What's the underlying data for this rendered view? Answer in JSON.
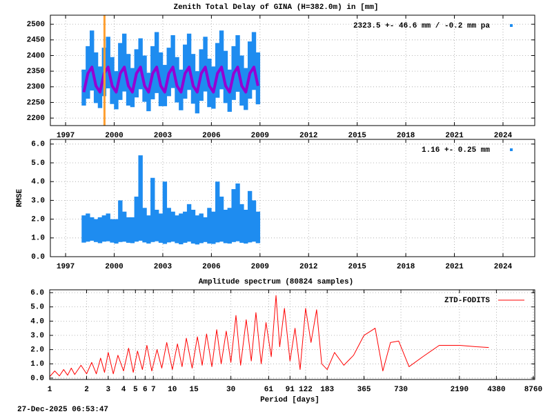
{
  "timestamp": "27-Dec-2025 06:53:47",
  "chart_data": [
    {
      "type": "range",
      "title": "Zenith Total Delay of GINA (H=382.0m) in [mm]",
      "xlim": [
        1996.06,
        2025.96
      ],
      "xticks": [
        1997,
        2000,
        2003,
        2006,
        2009,
        2012,
        2015,
        2018,
        2021,
        2024
      ],
      "ylim": [
        2176,
        2529
      ],
      "yticks": [
        2200,
        2250,
        2300,
        2350,
        2400,
        2450,
        2500
      ],
      "grid": true,
      "vlines": [
        {
          "x": 1999.4,
          "color": "#ff9f30"
        }
      ],
      "x": [
        1998.125,
        1998.375,
        1998.625,
        1998.875,
        1999.125,
        1999.375,
        1999.625,
        1999.875,
        2000.125,
        2000.375,
        2000.625,
        2000.875,
        2001.125,
        2001.375,
        2001.625,
        2001.875,
        2002.125,
        2002.375,
        2002.625,
        2002.875,
        2003.125,
        2003.375,
        2003.625,
        2003.875,
        2004.125,
        2004.375,
        2004.625,
        2004.875,
        2005.125,
        2005.375,
        2005.625,
        2005.875,
        2006.125,
        2006.375,
        2006.625,
        2006.875,
        2007.125,
        2007.375,
        2007.625,
        2007.875,
        2008.125,
        2008.375,
        2008.625,
        2008.875
      ],
      "series": [
        {
          "name": "2323.5 +-  46.6 mm / -0.2 mm pa",
          "color": "#1e8cf0",
          "low": [
            2240,
            2262,
            2288,
            2248,
            2232,
            2270,
            2295,
            2245,
            2228,
            2258,
            2285,
            2240,
            2235,
            2266,
            2292,
            2252,
            2222,
            2260,
            2280,
            2238,
            2238,
            2270,
            2296,
            2250,
            2225,
            2262,
            2290,
            2246,
            2215,
            2255,
            2285,
            2235,
            2230,
            2265,
            2292,
            2248,
            2220,
            2258,
            2284,
            2240,
            2226,
            2262,
            2290,
            2244
          ],
          "high": [
            2355,
            2430,
            2480,
            2410,
            2365,
            2425,
            2460,
            2395,
            2350,
            2440,
            2470,
            2405,
            2360,
            2420,
            2455,
            2400,
            2345,
            2430,
            2475,
            2410,
            2370,
            2425,
            2465,
            2395,
            2355,
            2435,
            2470,
            2405,
            2350,
            2420,
            2460,
            2390,
            2365,
            2440,
            2480,
            2415,
            2355,
            2430,
            2465,
            2400,
            2360,
            2445,
            2475,
            2410
          ]
        },
        {
          "color": "#9400d3",
          "values": [
            2283,
            2343,
            2363,
            2303,
            2283,
            2343,
            2363,
            2303,
            2283,
            2343,
            2363,
            2303,
            2283,
            2343,
            2363,
            2303,
            2283,
            2343,
            2363,
            2303,
            2283,
            2343,
            2363,
            2303,
            2283,
            2343,
            2363,
            2303,
            2283,
            2343,
            2363,
            2303,
            2283,
            2343,
            2363,
            2303,
            2283,
            2343,
            2363,
            2303,
            2283,
            2343,
            2363,
            2303
          ]
        }
      ]
    },
    {
      "type": "range",
      "ylabel": "RMSE",
      "xlim": [
        1996.06,
        2025.96
      ],
      "xticks": [
        1997,
        2000,
        2003,
        2006,
        2009,
        2012,
        2015,
        2018,
        2021,
        2024
      ],
      "ylim": [
        0,
        6.25
      ],
      "yticks": [
        {
          "value": 0,
          "label": "0.0"
        },
        {
          "value": 1,
          "label": "1.0"
        },
        {
          "value": 2,
          "label": "2.0"
        },
        {
          "value": 3,
          "label": "3.0"
        },
        {
          "value": 4,
          "label": "4.0"
        },
        {
          "value": 5,
          "label": "5.0"
        },
        {
          "value": 6,
          "label": "6.0"
        }
      ],
      "grid": true,
      "x": [
        1998.125,
        1998.375,
        1998.625,
        1998.875,
        1999.125,
        1999.375,
        1999.625,
        1999.875,
        2000.125,
        2000.375,
        2000.625,
        2000.875,
        2001.125,
        2001.375,
        2001.625,
        2001.875,
        2002.125,
        2002.375,
        2002.625,
        2002.875,
        2003.125,
        2003.375,
        2003.625,
        2003.875,
        2004.125,
        2004.375,
        2004.625,
        2004.875,
        2005.125,
        2005.375,
        2005.625,
        2005.875,
        2006.125,
        2006.375,
        2006.625,
        2006.875,
        2007.125,
        2007.375,
        2007.625,
        2007.875,
        2008.125,
        2008.375,
        2008.625,
        2008.875
      ],
      "series": [
        {
          "name": "1.16 +-  0.25 mm",
          "color": "#1e8cf0",
          "low": [
            0.75,
            0.8,
            0.85,
            0.78,
            0.72,
            0.8,
            0.82,
            0.75,
            0.7,
            0.78,
            0.8,
            0.74,
            0.72,
            0.8,
            0.85,
            0.76,
            0.7,
            0.78,
            0.82,
            0.74,
            0.68,
            0.76,
            0.8,
            0.72,
            0.66,
            0.74,
            0.8,
            0.7,
            0.65,
            0.72,
            0.78,
            0.7,
            0.68,
            0.76,
            0.8,
            0.72,
            0.7,
            0.78,
            0.82,
            0.74,
            0.7,
            0.76,
            0.8,
            0.72
          ],
          "high": [
            2.2,
            2.3,
            2.1,
            2.0,
            2.1,
            2.2,
            2.3,
            2.0,
            2.0,
            3.0,
            2.4,
            2.1,
            2.1,
            3.2,
            5.4,
            2.6,
            2.2,
            4.2,
            2.5,
            2.3,
            4.0,
            2.6,
            2.4,
            2.2,
            2.3,
            2.4,
            2.8,
            2.5,
            2.2,
            2.3,
            2.1,
            2.6,
            2.4,
            4.0,
            3.2,
            2.5,
            2.6,
            3.6,
            3.9,
            2.8,
            2.5,
            3.5,
            3.0,
            2.4
          ]
        }
      ]
    },
    {
      "type": "line",
      "title": "Amplitude spectrum (80824 samples)",
      "xlabel": "Period [days]",
      "xscale": "log",
      "xlim": [
        1,
        9000
      ],
      "xticks": [
        1,
        2,
        3,
        4,
        5,
        6,
        7,
        10,
        15,
        30,
        61,
        91,
        122,
        183,
        365,
        730,
        2190,
        4380,
        8760
      ],
      "ylim": [
        -0.1,
        6.2
      ],
      "yticks": [
        {
          "value": 0,
          "label": "0.0"
        },
        {
          "value": 1,
          "label": "1.0"
        },
        {
          "value": 2,
          "label": "2.0"
        },
        {
          "value": 3,
          "label": "3.0"
        },
        {
          "value": 4,
          "label": "4.0"
        },
        {
          "value": 5,
          "label": "5.0"
        },
        {
          "value": 6,
          "label": "6.0"
        }
      ],
      "grid": true,
      "x": [
        1,
        1.1,
        1.2,
        1.3,
        1.4,
        1.5,
        1.6,
        1.8,
        2,
        2.2,
        2.4,
        2.6,
        2.8,
        3,
        3.3,
        3.6,
        4,
        4.4,
        4.8,
        5.2,
        5.7,
        6.2,
        6.8,
        7.5,
        8.2,
        9,
        10,
        11,
        12,
        13,
        14.5,
        16,
        17.5,
        19,
        21,
        23,
        25,
        27.5,
        30,
        33,
        36,
        40,
        44,
        48,
        53,
        58,
        64,
        70,
        75,
        82,
        91,
        100,
        110,
        122,
        135,
        150,
        165,
        183,
        210,
        250,
        300,
        365,
        450,
        520,
        600,
        700,
        850,
        1100,
        1500,
        2200,
        3000,
        3800
      ],
      "series": [
        {
          "name": "ZTD-FODITS",
          "color": "#ff0000",
          "values": [
            0.1,
            0.5,
            0.15,
            0.6,
            0.2,
            0.7,
            0.25,
            0.9,
            0.3,
            1.1,
            0.3,
            1.4,
            0.4,
            1.8,
            0.3,
            1.6,
            0.5,
            2.1,
            0.4,
            1.9,
            0.6,
            2.3,
            0.5,
            2.0,
            0.7,
            2.5,
            0.6,
            2.4,
            0.8,
            2.8,
            0.7,
            2.9,
            0.9,
            3.1,
            0.8,
            3.4,
            1.0,
            3.3,
            1.1,
            4.4,
            0.9,
            4.1,
            1.2,
            4.6,
            1.0,
            3.9,
            1.5,
            5.8,
            2.2,
            4.9,
            1.2,
            3.5,
            0.6,
            4.9,
            2.5,
            4.8,
            1.0,
            0.6,
            1.8,
            0.9,
            1.6,
            3.0,
            3.5,
            0.5,
            2.5,
            2.6,
            0.8,
            1.5,
            2.3,
            2.3,
            2.2,
            2.15
          ]
        }
      ]
    }
  ]
}
